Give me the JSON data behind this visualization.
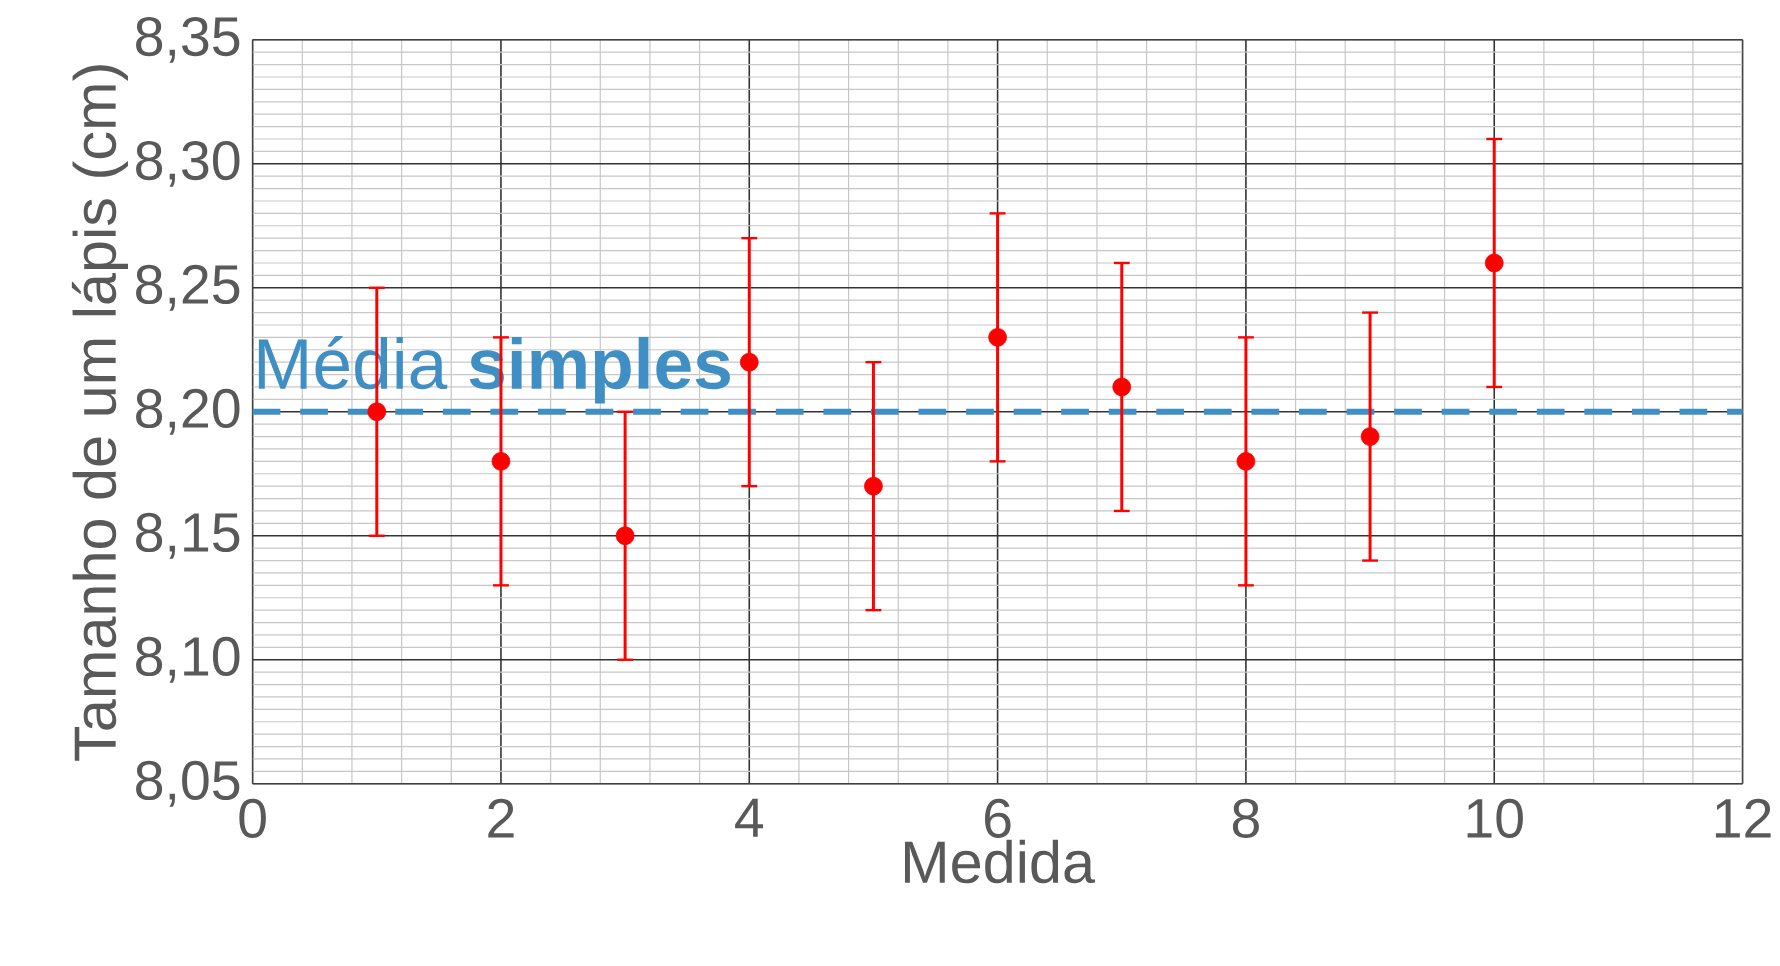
{
  "chart_data": {
    "type": "scatter",
    "xlabel": "Medida",
    "ylabel": "Tamanho de um lápis (cm)",
    "x": [
      1,
      2,
      3,
      4,
      5,
      6,
      7,
      8,
      9,
      10
    ],
    "series": [
      {
        "color": "#ff0000",
        "values": [
          8.2,
          8.18,
          8.15,
          8.22,
          8.17,
          8.23,
          8.21,
          8.18,
          8.19,
          8.26
        ],
        "errors": [
          0.05,
          0.05,
          0.05,
          0.05,
          0.05,
          0.05,
          0.05,
          0.05,
          0.05,
          0.05
        ]
      }
    ],
    "marker": "circle",
    "xlim": [
      0,
      12
    ],
    "xticks": [
      0,
      2,
      4,
      6,
      8,
      10,
      12
    ],
    "ylim": [
      8.05,
      8.35
    ],
    "yticks": [
      {
        "value": 8.05,
        "label": "8,05"
      },
      {
        "value": 8.1,
        "label": "8,10"
      },
      {
        "value": 8.15,
        "label": "8,15"
      },
      {
        "value": 8.2,
        "label": "8,20"
      },
      {
        "value": 8.25,
        "label": "8,25"
      },
      {
        "value": 8.3,
        "label": "8,30"
      },
      {
        "value": 8.35,
        "label": "8,35"
      }
    ],
    "grid": true,
    "ref_lines": [
      {
        "axis": "y",
        "value": 8.2,
        "label": "Média **simples**",
        "color": "#3f8fc4",
        "line_style": "dashed"
      }
    ]
  }
}
